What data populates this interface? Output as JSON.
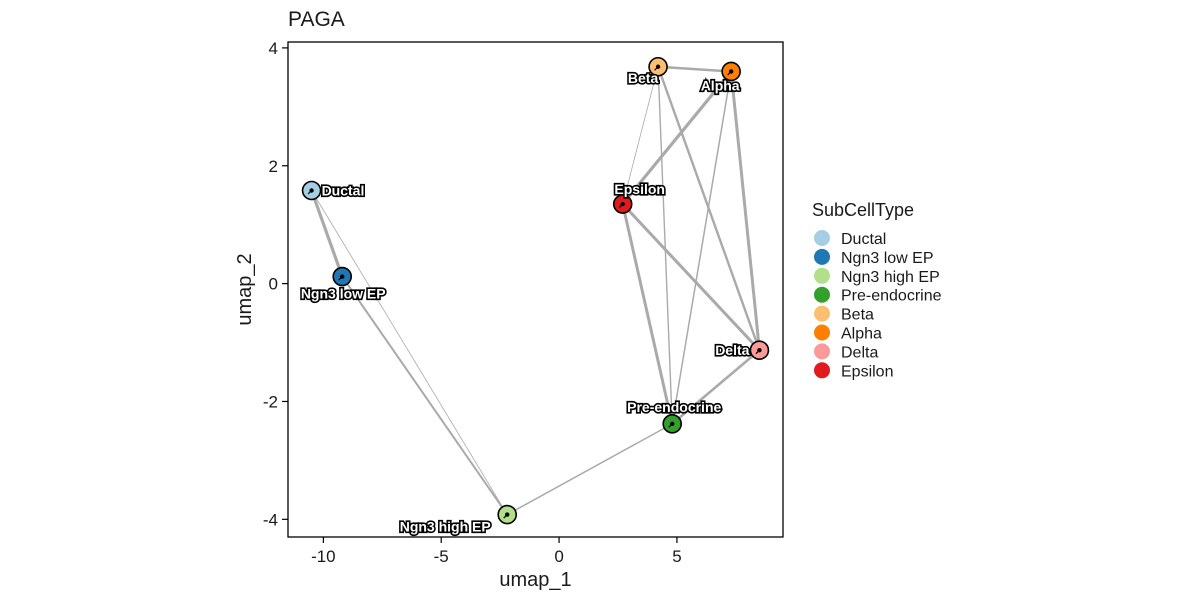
{
  "chart_data": {
    "type": "scatter",
    "title": "PAGA",
    "xlabel": "umap_1",
    "ylabel": "umap_2",
    "xlim": [
      -11.5,
      9.5
    ],
    "ylim": [
      -4.3,
      4.1
    ],
    "xticks": [
      -10,
      -5,
      0,
      5
    ],
    "xtick_labels": [
      "-10",
      "-5",
      "0",
      "5"
    ],
    "yticks": [
      4,
      2,
      0,
      -2,
      -4
    ],
    "ytick_labels": [
      "4",
      "2",
      "0",
      "-2",
      "-4"
    ],
    "grid": false,
    "legend": {
      "title": "SubCellType",
      "placement": "right"
    },
    "nodes": [
      {
        "name": "Ductal",
        "x": -10.5,
        "y": 1.58,
        "color": "#A6CEE3",
        "label_anchor": "start"
      },
      {
        "name": "Ngn3 low EP",
        "x": -9.2,
        "y": 0.12,
        "color": "#1F78B4",
        "label_anchor": "below"
      },
      {
        "name": "Ngn3 high EP",
        "x": -2.2,
        "y": -3.92,
        "color": "#B2DF8A",
        "label_anchor": "below-left"
      },
      {
        "name": "Pre-endocrine",
        "x": 4.8,
        "y": -2.38,
        "color": "#33A02C",
        "label_anchor": "above"
      },
      {
        "name": "Beta",
        "x": 4.2,
        "y": 3.68,
        "color": "#FDBF6F",
        "label_anchor": "below-left"
      },
      {
        "name": "Alpha",
        "x": 7.3,
        "y": 3.6,
        "color": "#FF7F00",
        "label_anchor": "below"
      },
      {
        "name": "Delta",
        "x": 8.5,
        "y": -1.13,
        "color": "#FB9A99",
        "label_anchor": "end"
      },
      {
        "name": "Epsilon",
        "x": 2.7,
        "y": 1.35,
        "color": "#E31A1C",
        "label_anchor": "above"
      }
    ],
    "edges": [
      {
        "source": "Ductal",
        "target": "Ngn3 low EP",
        "weight": 3.2
      },
      {
        "source": "Ductal",
        "target": "Ngn3 high EP",
        "weight": 0.8
      },
      {
        "source": "Ngn3 low EP",
        "target": "Ngn3 high EP",
        "weight": 2.0
      },
      {
        "source": "Ngn3 high EP",
        "target": "Pre-endocrine",
        "weight": 1.5
      },
      {
        "source": "Pre-endocrine",
        "target": "Epsilon",
        "weight": 3.0
      },
      {
        "source": "Pre-endocrine",
        "target": "Delta",
        "weight": 2.6
      },
      {
        "source": "Pre-endocrine",
        "target": "Beta",
        "weight": 1.4
      },
      {
        "source": "Pre-endocrine",
        "target": "Alpha",
        "weight": 1.5
      },
      {
        "source": "Epsilon",
        "target": "Alpha",
        "weight": 3.2
      },
      {
        "source": "Epsilon",
        "target": "Beta",
        "weight": 0.8
      },
      {
        "source": "Epsilon",
        "target": "Delta",
        "weight": 3.0
      },
      {
        "source": "Beta",
        "target": "Alpha",
        "weight": 2.5
      },
      {
        "source": "Beta",
        "target": "Delta",
        "weight": 2.4
      },
      {
        "source": "Alpha",
        "target": "Delta",
        "weight": 3.0
      }
    ]
  }
}
